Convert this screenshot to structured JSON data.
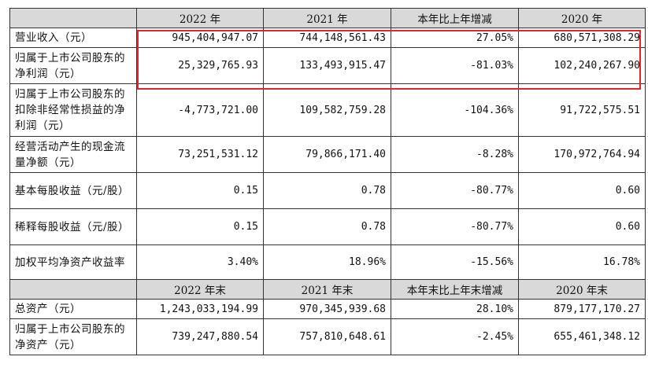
{
  "table": {
    "header1": [
      "",
      "2022 年",
      "2021 年",
      "本年比上年增减",
      "2020 年"
    ],
    "rows1": [
      {
        "label": "营业收入（元）",
        "values": [
          "945,404,947.07",
          "744,148,561.43",
          "27.05%",
          "680,571,308.29"
        ]
      },
      {
        "label": "归属于上市公司股东的净利润（元）",
        "values": [
          "25,329,765.93",
          "133,493,915.47",
          "-81.03%",
          "102,240,267.90"
        ]
      },
      {
        "label": "归属于上市公司股东的扣除非经常性损益的净利润（元）",
        "values": [
          "-4,773,721.00",
          "109,582,759.28",
          "-104.36%",
          "91,722,575.51"
        ]
      },
      {
        "label": "经营活动产生的现金流量净额（元）",
        "values": [
          "73,251,531.12",
          "79,866,171.40",
          "-8.28%",
          "170,972,764.94"
        ]
      },
      {
        "label": "基本每股收益（元/股）",
        "values": [
          "0.15",
          "0.78",
          "-80.77%",
          "0.60"
        ]
      },
      {
        "label": "稀释每股收益（元/股）",
        "values": [
          "0.15",
          "0.78",
          "-80.77%",
          "0.60"
        ]
      },
      {
        "label": "加权平均净资产收益率",
        "values": [
          "3.40%",
          "18.96%",
          "-15.56%",
          "16.78%"
        ]
      }
    ],
    "header2": [
      "",
      "2022 年末",
      "2021 年末",
      "本年末比上年末增减",
      "2020 年末"
    ],
    "rows2": [
      {
        "label": "总资产（元）",
        "values": [
          "1,243,033,194.99",
          "970,345,939.68",
          "28.10%",
          "879,177,170.27"
        ]
      },
      {
        "label": "归属于上市公司股东的净资产（元）",
        "values": [
          "739,247,880.54",
          "757,810,648.61",
          "-2.45%",
          "655,461,348.12"
        ]
      }
    ]
  },
  "highlight_color": "#e3262b"
}
